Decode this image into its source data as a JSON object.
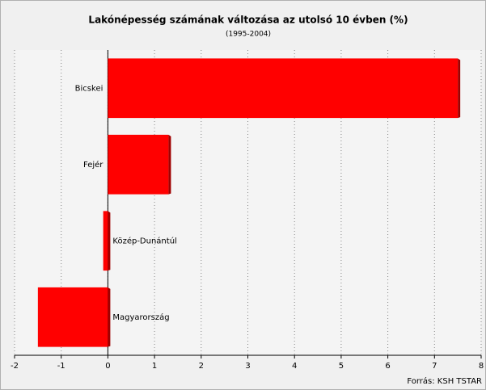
{
  "chart_data": {
    "type": "hbar",
    "title": "Lakónépesség számának változása az utolsó 10 évben (%)",
    "subtitle": "(1995-2004)",
    "source": "Forrás: KSH TSTAR",
    "categories": [
      "Bicskei",
      "Fejér",
      "Közép-Dunántúl",
      "Magyarország"
    ],
    "values": [
      7.5,
      1.3,
      -0.1,
      -1.5
    ],
    "color": "#ff0000",
    "xlim": [
      -2,
      8
    ],
    "xticks": [
      -2,
      -1,
      0,
      1,
      2,
      3,
      4,
      5,
      6,
      7,
      8
    ],
    "grid": true
  }
}
